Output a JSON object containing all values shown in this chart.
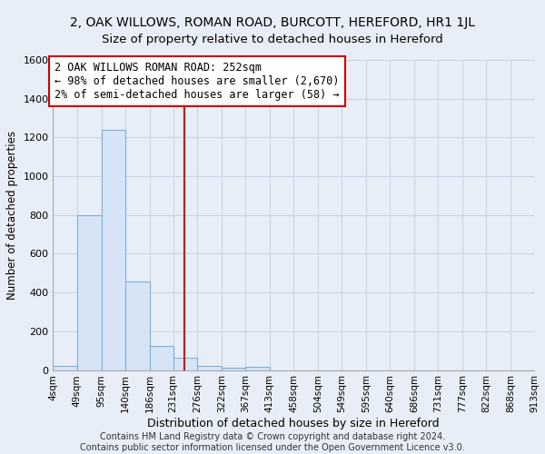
{
  "title": "2, OAK WILLOWS, ROMAN ROAD, BURCOTT, HEREFORD, HR1 1JL",
  "subtitle": "Size of property relative to detached houses in Hereford",
  "xlabel": "Distribution of detached houses by size in Hereford",
  "ylabel": "Number of detached properties",
  "bar_values": [
    20,
    800,
    1240,
    455,
    125,
    65,
    20,
    10,
    15,
    0,
    0,
    0,
    0,
    0,
    0,
    0,
    0,
    0,
    0,
    0
  ],
  "bin_edges": [
    4,
    49,
    95,
    140,
    186,
    231,
    276,
    322,
    367,
    413,
    458,
    504,
    549,
    595,
    640,
    686,
    731,
    777,
    822,
    868,
    913
  ],
  "tick_labels": [
    "4sqm",
    "49sqm",
    "95sqm",
    "140sqm",
    "186sqm",
    "231sqm",
    "276sqm",
    "322sqm",
    "367sqm",
    "413sqm",
    "458sqm",
    "504sqm",
    "549sqm",
    "595sqm",
    "640sqm",
    "686sqm",
    "731sqm",
    "777sqm",
    "822sqm",
    "868sqm",
    "913sqm"
  ],
  "vline_x": 252,
  "vline_color": "#cc0000",
  "bar_facecolor": "#d6e4f5",
  "bar_edgecolor": "#7dafd9",
  "annotation_text": "2 OAK WILLOWS ROMAN ROAD: 252sqm\n← 98% of detached houses are smaller (2,670)\n2% of semi-detached houses are larger (58) →",
  "annotation_box_color": "#ffffff",
  "annotation_box_edgecolor": "#cc0000",
  "ylim": [
    0,
    1600
  ],
  "yticks": [
    0,
    200,
    400,
    600,
    800,
    1000,
    1200,
    1400,
    1600
  ],
  "footer": "Contains HM Land Registry data © Crown copyright and database right 2024.\nContains public sector information licensed under the Open Government Licence v3.0.",
  "background_color": "#e8eef7",
  "plot_bg_color": "#e8eef7",
  "grid_color": "#c8d4e8",
  "title_fontsize": 10,
  "subtitle_fontsize": 9.5,
  "annotation_fontsize": 8.5,
  "tick_fontsize": 7.5,
  "ylabel_fontsize": 8.5,
  "xlabel_fontsize": 9,
  "footer_fontsize": 7
}
